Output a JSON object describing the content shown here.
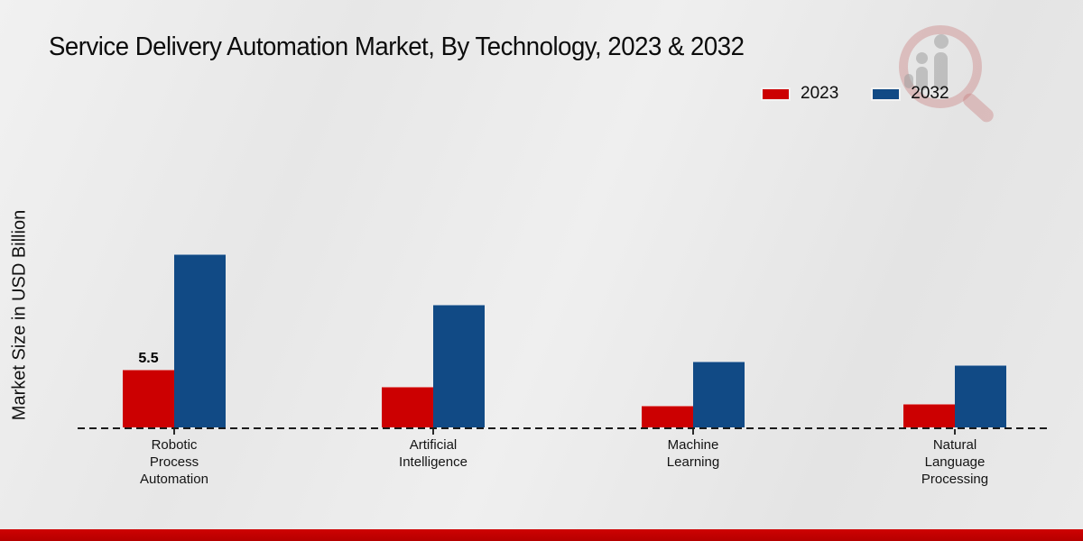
{
  "header": {
    "title": "Service Delivery Automation Market, By Technology, 2023 & 2032",
    "watermark_icon": "market-research-logo-watermark"
  },
  "y_axis": {
    "label": "Market Size in USD Billion"
  },
  "legend": {
    "position": "top-right",
    "items": [
      {
        "label": "2023",
        "color": "#cc0001"
      },
      {
        "label": "2032",
        "color": "#114a85"
      }
    ]
  },
  "footer": {
    "stripe_color": "#c00000"
  },
  "chart_data": {
    "type": "bar",
    "title": "Service Delivery Automation Market, By Technology, 2023 & 2032",
    "ylabel": "Market Size in USD Billion",
    "xlabel": "",
    "categories": [
      "Robotic Process Automation",
      "Artificial Intelligence",
      "Machine Learning",
      "Natural Language Processing"
    ],
    "category_lines": [
      [
        "Robotic",
        "Process",
        "Automation"
      ],
      [
        "Artificial",
        "Intelligence"
      ],
      [
        "Machine",
        "Learning"
      ],
      [
        "Natural",
        "Language",
        "Processing"
      ]
    ],
    "series": [
      {
        "name": "2023",
        "color": "#cc0001",
        "values": [
          5.5,
          3.9,
          2.1,
          2.2
        ],
        "value_labels": [
          "5.5",
          null,
          null,
          null
        ]
      },
      {
        "name": "2032",
        "color": "#114a85",
        "values": [
          16.5,
          11.7,
          6.3,
          5.9
        ],
        "value_labels": [
          null,
          null,
          null,
          null
        ]
      }
    ],
    "ylim": [
      0,
      18
    ],
    "y_ticks_visible": false,
    "grid": false,
    "baseline_style": "dashed",
    "legend_position": "top-right"
  }
}
